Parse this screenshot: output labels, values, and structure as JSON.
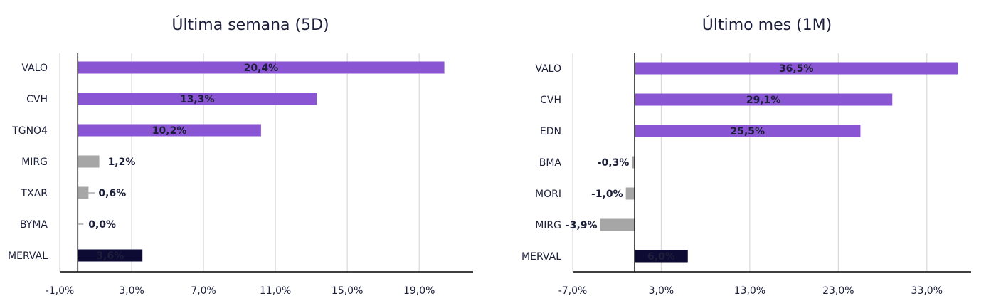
{
  "chart_data": [
    {
      "type": "bar",
      "orientation": "horizontal",
      "title": "Última semana (5D)",
      "categories": [
        "VALO",
        "CVH",
        "TGNO4",
        "MIRG",
        "TXAR",
        "BYMA",
        "MERVAL"
      ],
      "values": [
        20.4,
        13.3,
        10.2,
        1.2,
        0.6,
        0.0,
        3.6
      ],
      "labels": [
        "20,4%",
        "13,3%",
        "10,2%",
        "1,2%",
        "0,6%",
        "0,0%",
        "3,6%"
      ],
      "xlim": [
        -1.0,
        22.0
      ],
      "xticks": [
        -1,
        3,
        7,
        11,
        15,
        19
      ],
      "xtick_labels": [
        "-1,0%",
        "3,0%",
        "7,0%",
        "11,0%",
        "15,0%",
        "19,0%"
      ],
      "grid": "vertical"
    },
    {
      "type": "bar",
      "orientation": "horizontal",
      "title": "Último mes (1M)",
      "categories": [
        "VALO",
        "CVH",
        "EDN",
        "BMA",
        "MORI",
        "MIRG",
        "MERVAL"
      ],
      "values": [
        36.5,
        29.1,
        25.5,
        -0.3,
        -1.0,
        -3.9,
        6.0
      ],
      "labels": [
        "36,5%",
        "29,1%",
        "25,5%",
        "-0,3%",
        "-1,0%",
        "-3,9%",
        "6,0%"
      ],
      "xlim": [
        -7.0,
        38.0
      ],
      "xticks": [
        -7,
        3,
        13,
        23,
        33
      ],
      "xtick_labels": [
        "-7,0%",
        "3,0%",
        "13,0%",
        "23,0%",
        "33,0%"
      ],
      "grid": "vertical"
    }
  ],
  "colors": {
    "top_three": "#8a55d3",
    "others": "#a6a6a6",
    "merval": "#0d0a33",
    "grid": "#d9d9d9",
    "axis": "#000000",
    "text": "#1c1f3a",
    "label_on_dark": "#ffffff"
  }
}
